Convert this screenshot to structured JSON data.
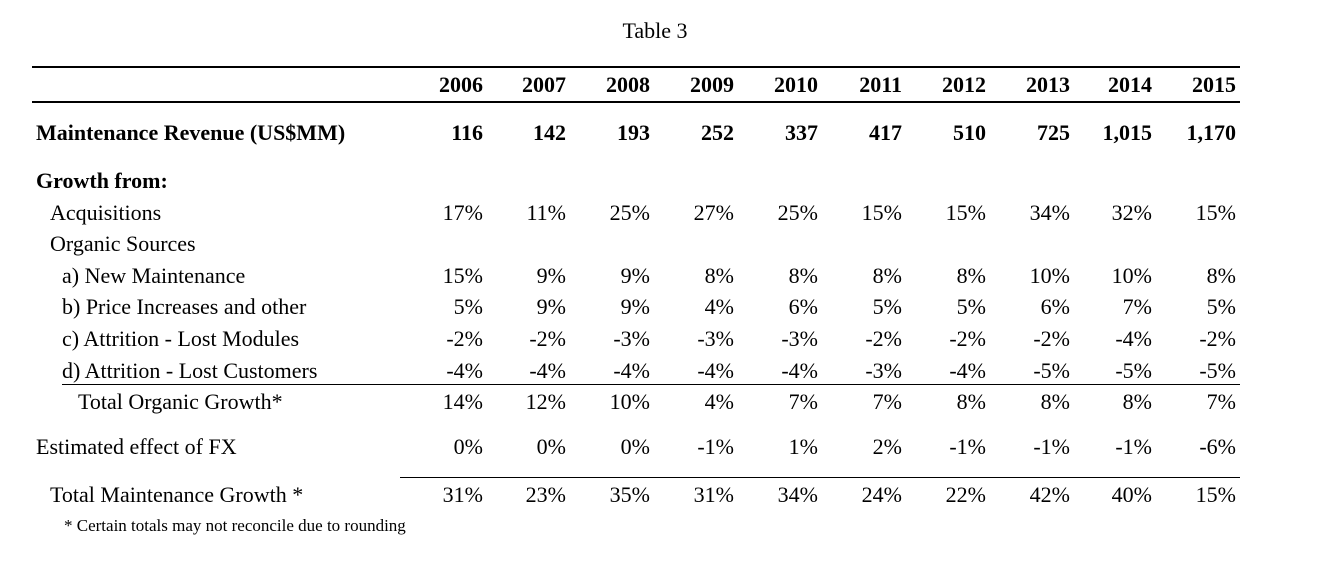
{
  "title": "Table 3",
  "years": [
    "2006",
    "2007",
    "2008",
    "2009",
    "2010",
    "2011",
    "2012",
    "2013",
    "2014",
    "2015"
  ],
  "revenue": {
    "label": "Maintenance Revenue (US$MM)",
    "values": [
      "116",
      "142",
      "193",
      "252",
      "337",
      "417",
      "510",
      "725",
      "1,015",
      "1,170"
    ]
  },
  "growth_from_label": "Growth from:",
  "acquisitions": {
    "label": "Acquisitions",
    "values": [
      "17%",
      "11%",
      "25%",
      "27%",
      "25%",
      "15%",
      "15%",
      "34%",
      "32%",
      "15%"
    ]
  },
  "organic_label": "Organic Sources",
  "new_maintenance": {
    "label": "a) New Maintenance",
    "values": [
      "15%",
      "9%",
      "9%",
      "8%",
      "8%",
      "8%",
      "8%",
      "10%",
      "10%",
      "8%"
    ]
  },
  "price_increases": {
    "label": "b) Price Increases and other",
    "values": [
      "5%",
      "9%",
      "9%",
      "4%",
      "6%",
      "5%",
      "5%",
      "6%",
      "7%",
      "5%"
    ]
  },
  "lost_modules": {
    "label": "c) Attrition - Lost Modules",
    "values": [
      "-2%",
      "-2%",
      "-3%",
      "-3%",
      "-3%",
      "-2%",
      "-2%",
      "-2%",
      "-4%",
      "-2%"
    ]
  },
  "lost_customers": {
    "label": "d) Attrition - Lost Customers",
    "values": [
      "-4%",
      "-4%",
      "-4%",
      "-4%",
      "-4%",
      "-3%",
      "-4%",
      "-5%",
      "-5%",
      "-5%"
    ]
  },
  "total_organic": {
    "label": "Total Organic Growth*",
    "values": [
      "14%",
      "12%",
      "10%",
      "4%",
      "7%",
      "7%",
      "8%",
      "8%",
      "8%",
      "7%"
    ]
  },
  "fx": {
    "label": "Estimated effect of FX",
    "values": [
      "0%",
      "0%",
      "0%",
      "-1%",
      "1%",
      "2%",
      "-1%",
      "-1%",
      "-1%",
      "-6%"
    ]
  },
  "total_growth": {
    "label": "Total Maintenance Growth *",
    "values": [
      "31%",
      "23%",
      "35%",
      "31%",
      "34%",
      "24%",
      "22%",
      "42%",
      "40%",
      "15%"
    ]
  },
  "footnote": "* Certain totals may not reconcile due to rounding"
}
